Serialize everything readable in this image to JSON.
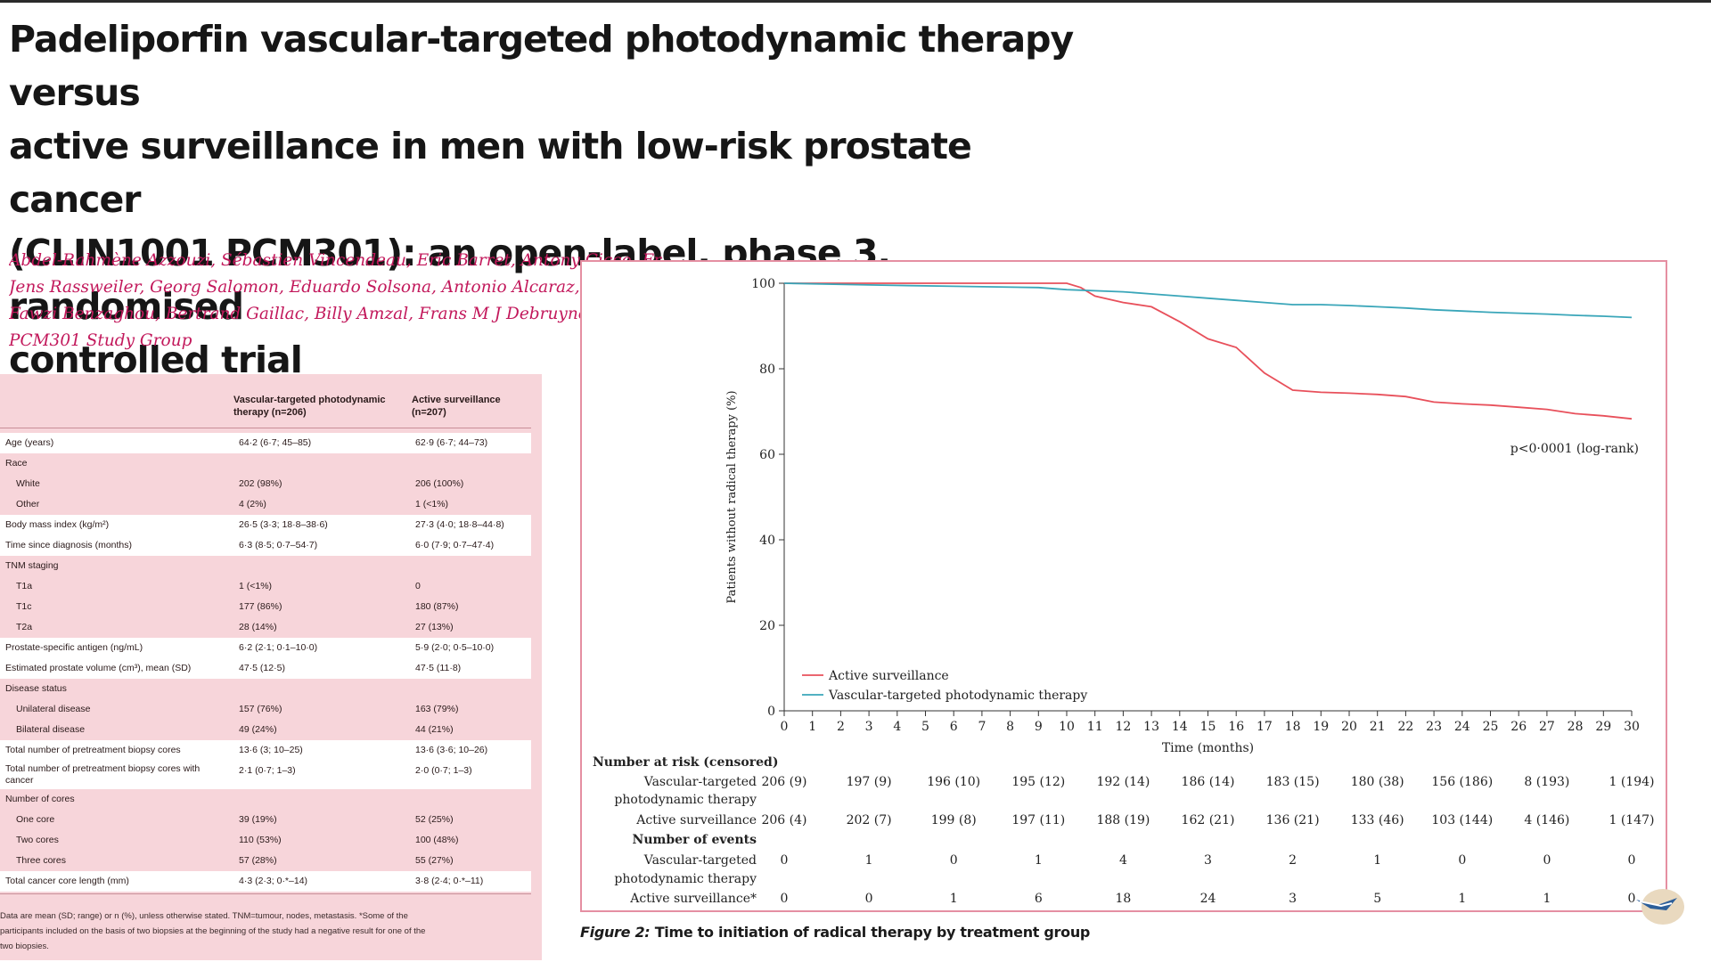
{
  "paper": {
    "title_lines": [
      "Padeliporfin vascular-targeted photodynamic therapy versus",
      "active surveillance in men with low-risk prostate cancer",
      "(CLIN1001 PCM301): an open-label, phase 3, randomised",
      "controlled trial"
    ],
    "author_lines": [
      "Abdel-Rahmène Azzouzi, Sébastien Vincendeau, Eric Barret, Antony Cicco, Fr",
      "Jens Rassweiler, Georg Salomon, Eduardo Solsona, Antonio Alcaraz, Teuvo T T",
      "Fawzi Benzaghou, Bertrand Gaillac, Billy Amzal, Frans M J Debruyne, Gaëlle F",
      "PCM301 Study Group"
    ]
  },
  "table1": {
    "headers": {
      "col1": "Vascular-targeted photodynamic therapy (n=206)",
      "col2": "Active surveillance (n=207)"
    },
    "rows": [
      {
        "label": "Age (years)",
        "v1": "64·2 (6·7; 45–85)",
        "v2": "62·9 (6·7; 44–73)",
        "sub": false,
        "shade": true
      },
      {
        "label": "Race",
        "v1": "",
        "v2": "",
        "sub": false,
        "shade": false
      },
      {
        "label": "White",
        "v1": "202 (98%)",
        "v2": "206 (100%)",
        "sub": true,
        "shade": false
      },
      {
        "label": "Other",
        "v1": "4 (2%)",
        "v2": "1 (<1%)",
        "sub": true,
        "shade": false
      },
      {
        "label": "Body mass index (kg/m²)",
        "v1": "26·5 (3·3; 18·8–38·6)",
        "v2": "27·3 (4·0; 18·8–44·8)",
        "sub": false,
        "shade": true
      },
      {
        "label": "Time since diagnosis (months)",
        "v1": "6·3 (8·5; 0·7–54·7)",
        "v2": "6·0 (7·9; 0·7–47·4)",
        "sub": false,
        "shade": true
      },
      {
        "label": "TNM staging",
        "v1": "",
        "v2": "",
        "sub": false,
        "shade": false
      },
      {
        "label": "T1a",
        "v1": "1 (<1%)",
        "v2": "0",
        "sub": true,
        "shade": false
      },
      {
        "label": "T1c",
        "v1": "177 (86%)",
        "v2": "180 (87%)",
        "sub": true,
        "shade": false
      },
      {
        "label": "T2a",
        "v1": "28 (14%)",
        "v2": "27 (13%)",
        "sub": true,
        "shade": false
      },
      {
        "label": "Prostate-specific antigen (ng/mL)",
        "v1": "6·2 (2·1; 0·1–10·0)",
        "v2": "5·9 (2·0; 0·5–10·0)",
        "sub": false,
        "shade": true
      },
      {
        "label": "Estimated prostate volume (cm³), mean (SD)",
        "v1": "47·5 (12·5)",
        "v2": "47·5 (11·8)",
        "sub": false,
        "shade": true
      },
      {
        "label": "Disease status",
        "v1": "",
        "v2": "",
        "sub": false,
        "shade": false
      },
      {
        "label": "Unilateral disease",
        "v1": "157 (76%)",
        "v2": "163 (79%)",
        "sub": true,
        "shade": false
      },
      {
        "label": "Bilateral disease",
        "v1": "49 (24%)",
        "v2": "44 (21%)",
        "sub": true,
        "shade": false
      },
      {
        "label": "Total number of pretreatment biopsy cores",
        "v1": "13·6 (3; 10–25)",
        "v2": "13·6 (3·6; 10–26)",
        "sub": false,
        "shade": true
      },
      {
        "label": "Total number of pretreatment biopsy cores with cancer",
        "v1": "2·1 (0·7; 1–3)",
        "v2": "2·0 (0·7; 1–3)",
        "sub": false,
        "shade": true
      },
      {
        "label": "Number of cores",
        "v1": "",
        "v2": "",
        "sub": false,
        "shade": false
      },
      {
        "label": "One core",
        "v1": "39 (19%)",
        "v2": "52 (25%)",
        "sub": true,
        "shade": false
      },
      {
        "label": "Two cores",
        "v1": "110 (53%)",
        "v2": "100 (48%)",
        "sub": true,
        "shade": false
      },
      {
        "label": "Three cores",
        "v1": "57 (28%)",
        "v2": "55 (27%)",
        "sub": true,
        "shade": false
      },
      {
        "label": "Total cancer core length (mm)",
        "v1": "4·3 (2·3; 0·*–14)",
        "v2": "3·8 (2·4; 0·*–11)",
        "sub": false,
        "shade": true
      }
    ],
    "footnote_lines": [
      "Data are mean (SD; range) or n (%), unless otherwise stated. TNM=tumour, nodes, metastasis. *Some of the",
      "participants included on the basis of two biopsies at the beginning of the study had a negative result for one of the",
      "two biopsies."
    ]
  },
  "figure": {
    "caption_number": "Figure 2:",
    "caption_text": "Time to initiation of radical therapy by treatment group",
    "pvalue": "p<0·0001 (log-rank)",
    "risk_table": {
      "header_risk": "Number at risk (censored)",
      "header_events": "Number of events",
      "vtp_label": [
        "Vascular-targeted",
        "photodynamic therapy"
      ],
      "as_label": "Active surveillance",
      "as_label_events": "Active surveillance*",
      "columns_months": [
        0,
        3,
        6,
        9,
        12,
        15,
        18,
        21,
        24,
        27,
        30
      ],
      "vtp_at_risk": [
        "206 (9)",
        "197 (9)",
        "196 (10)",
        "195 (12)",
        "192 (14)",
        "186 (14)",
        "183 (15)",
        "180 (38)",
        "156 (186)",
        "8 (193)",
        "1 (194)"
      ],
      "as_at_risk": [
        "206 (4)",
        "202 (7)",
        "199 (8)",
        "197 (11)",
        "188 (19)",
        "162 (21)",
        "136 (21)",
        "133 (46)",
        "103 (144)",
        "4 (146)",
        "1 (147)"
      ],
      "vtp_events": [
        "0",
        "1",
        "0",
        "1",
        "4",
        "3",
        "2",
        "1",
        "0",
        "0",
        "0"
      ],
      "as_events": [
        "0",
        "0",
        "1",
        "6",
        "18",
        "24",
        "3",
        "5",
        "1",
        "1",
        "0"
      ]
    }
  },
  "chart_data": {
    "type": "line",
    "title": "",
    "xlabel": "Time (months)",
    "ylabel": "Patients without radical therapy (%)",
    "xlim": [
      0,
      30
    ],
    "ylim": [
      0,
      100
    ],
    "xticks": [
      0,
      1,
      2,
      3,
      4,
      5,
      6,
      7,
      8,
      9,
      10,
      11,
      12,
      13,
      14,
      15,
      16,
      17,
      18,
      19,
      20,
      21,
      22,
      23,
      24,
      25,
      26,
      27,
      28,
      29,
      30
    ],
    "yticks": [
      0,
      20,
      40,
      60,
      80,
      100
    ],
    "grid": false,
    "legend_position": "bottom-left",
    "series": [
      {
        "name": "Active surveillance",
        "color": "#e8505b",
        "x": [
          0,
          10,
          10.5,
          11,
          12,
          13,
          14,
          15,
          16,
          16.5,
          17,
          18,
          19,
          20,
          21,
          22,
          23,
          24,
          25,
          26,
          27,
          28,
          29,
          30
        ],
        "y": [
          100,
          100,
          99,
          97,
          95.5,
          94.5,
          91,
          87,
          85,
          82,
          79,
          75,
          74.5,
          74.3,
          74,
          73.5,
          72.2,
          71.8,
          71.5,
          71,
          70.5,
          69.5,
          69,
          68.3
        ]
      },
      {
        "name": "Vascular-targeted photodynamic therapy",
        "color": "#3aa6b9",
        "x": [
          0,
          3,
          6,
          9,
          10,
          12,
          13,
          14,
          15,
          16,
          17,
          18,
          19,
          20,
          21,
          22,
          23,
          24,
          25,
          26,
          27,
          28,
          29,
          30
        ],
        "y": [
          100,
          99.6,
          99.3,
          99,
          98.5,
          98,
          97.5,
          97,
          96.5,
          96,
          95.5,
          95,
          95,
          94.8,
          94.5,
          94.2,
          93.8,
          93.5,
          93.2,
          93,
          92.8,
          92.5,
          92.3,
          92
        ]
      }
    ]
  }
}
